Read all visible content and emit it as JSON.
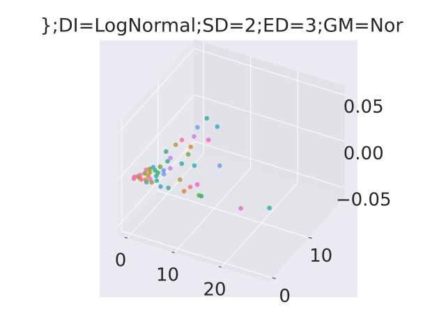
{
  "chart_data": {
    "type": "scatter3d",
    "title": "};DI=LogNormal;SD=2;ED=3;GM=Nor",
    "x": [
      0.5,
      1.3,
      2.2,
      3.1,
      3.5,
      4.6,
      3.1,
      4.8,
      5.0,
      1.0,
      1.8,
      2.5,
      0.8,
      1.5,
      2.8,
      3.8,
      2.0,
      4.2,
      3.3,
      0.3,
      1.2,
      2.6,
      4.0,
      1.7,
      3.6,
      3.6,
      6.6,
      3.4,
      4.2,
      7.1,
      2.7,
      5.2,
      2.4,
      5.9,
      1.8,
      6.2,
      8.6,
      12.8,
      3.5,
      11.9,
      11.1,
      10.7,
      8.3,
      13.8,
      14.3,
      7.6,
      6.1,
      22.7,
      27.4
    ],
    "y": [
      0.1,
      0.6,
      2.3,
      4.0,
      5.5,
      1.1,
      0.2,
      2.8,
      4.3,
      1.2,
      0.4,
      1.5,
      0.8,
      1.8,
      3.0,
      2.0,
      3.5,
      3.5,
      1.0,
      0.5,
      2.6,
      0.6,
      0.5,
      3.0,
      2.7,
      16.2,
      15.2,
      13.9,
      11.9,
      12.1,
      10.5,
      9.7,
      9.2,
      8.1,
      7.3,
      5.9,
      6.3,
      7.8,
      6.3,
      2.8,
      1.9,
      0.7,
      2.7,
      0.8,
      0.8,
      0.4,
      0.2,
      0.8,
      2.6
    ],
    "z": [
      0,
      0,
      0,
      0,
      0,
      0,
      0,
      0,
      0,
      0,
      0,
      0,
      0,
      0,
      0,
      0,
      0,
      0,
      0,
      0,
      0,
      0,
      0,
      0,
      0,
      0,
      0,
      0,
      0,
      0,
      0,
      0,
      0,
      0,
      0,
      0,
      0,
      0,
      0,
      0,
      0,
      0,
      0,
      0,
      0,
      0,
      0,
      0,
      0
    ],
    "colors": [
      "#f77189",
      "#dc8932",
      "#ae9d31",
      "#77ab31",
      "#33b07a",
      "#36ada4",
      "#38a9c5",
      "#6e9bf4",
      "#cc7af4",
      "#f565cc",
      "#f77189",
      "#dc8932",
      "#ae9d31",
      "#77ab31",
      "#33b07a",
      "#36ada4",
      "#38a9c5",
      "#6e9bf4",
      "#cc7af4",
      "#f565cc",
      "#f77189",
      "#dc8932",
      "#ae9d31",
      "#77ab31",
      "#33b07a",
      "#36ada4",
      "#38a9c5",
      "#6e9bf4",
      "#cc7af4",
      "#f565cc",
      "#f77189",
      "#dc8932",
      "#ae9d31",
      "#77ab31",
      "#33b07a",
      "#36ada4",
      "#38a9c5",
      "#6e9bf4",
      "#cc7af4",
      "#f565cc",
      "#f77189",
      "#dc8932",
      "#ae9d31",
      "#77ab31",
      "#33b07a",
      "#36ada4",
      "#38a9c5",
      "#f565cc",
      "#38a9c5"
    ],
    "xlim": [
      -2,
      30
    ],
    "ylim": [
      -1,
      20
    ],
    "zlim": [
      -0.06,
      0.06
    ],
    "xticks": [
      0,
      10,
      20
    ],
    "yticks": [
      0,
      10
    ],
    "zticks": [
      {
        "value": -0.05,
        "label": "−0.05"
      },
      {
        "value": 0,
        "label": "0.00"
      },
      0.05
    ],
    "grid": true
  }
}
